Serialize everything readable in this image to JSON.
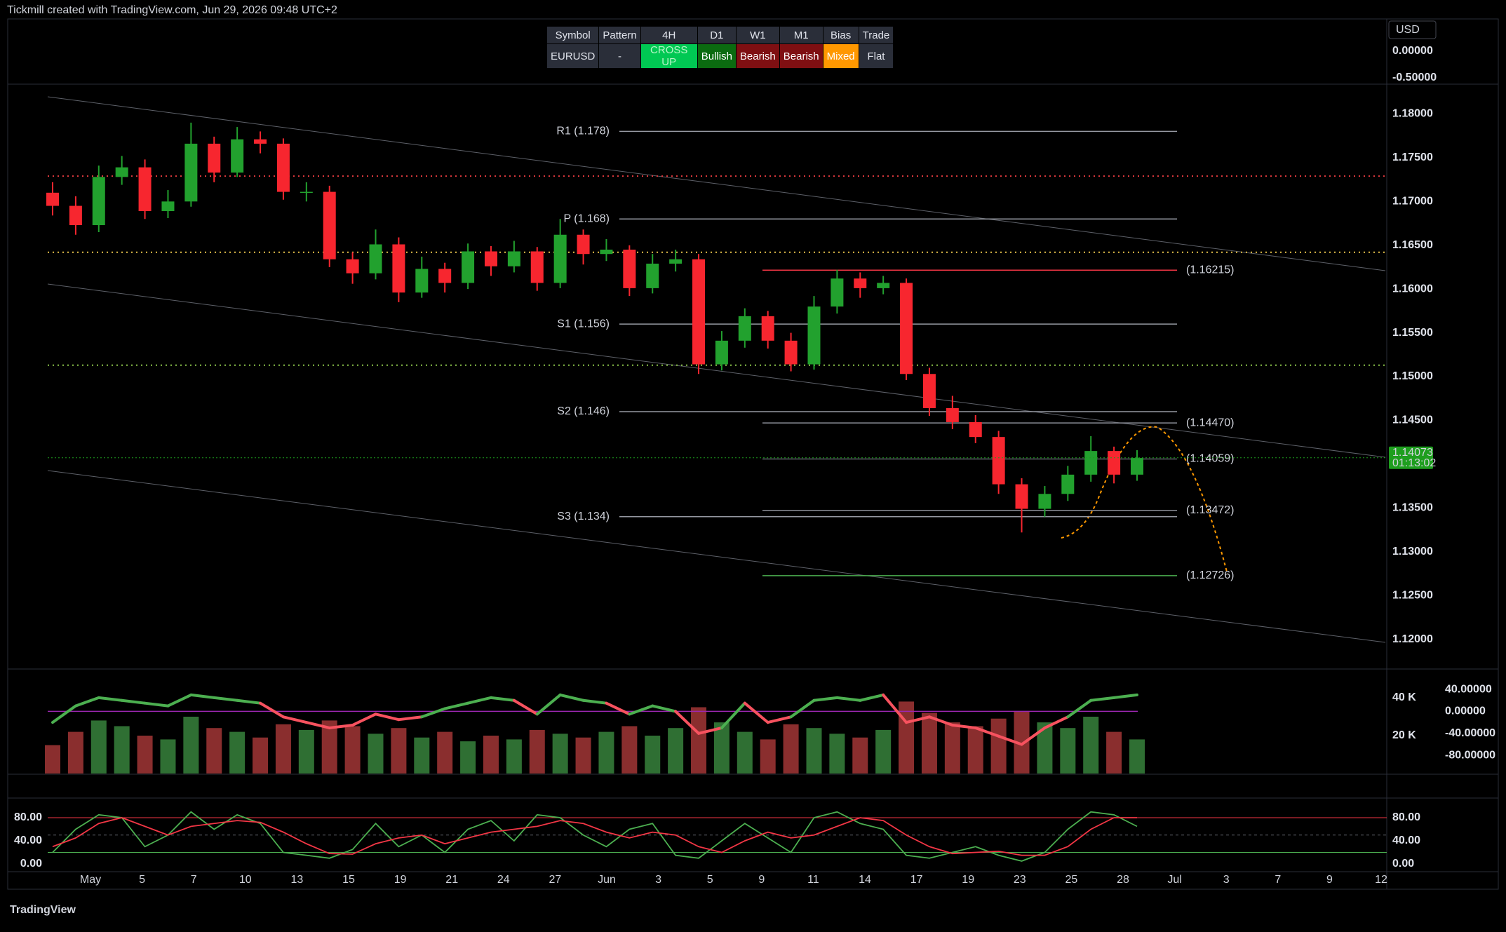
{
  "header": {
    "title": "Tickmill created with TradingView.com, Jun 29, 2026 09:48 UTC+2",
    "currency": "USD"
  },
  "table": {
    "header": [
      "Symbol",
      "Pattern",
      "4H",
      "D1",
      "W1",
      "M1",
      "Bias",
      "Trade"
    ],
    "row": [
      "EURUSD",
      "-",
      "CROSS UP",
      "Bullish",
      "Bearish",
      "Bearish",
      "Mixed",
      "Flat"
    ]
  },
  "footer": {
    "brand": "TradingView"
  },
  "chart_data": [
    {
      "type": "candlestick",
      "up_color": "#22a12e",
      "down_color": "#f7262f",
      "open": [
        1.171,
        1.1695,
        1.1673,
        1.1728,
        1.1739,
        1.1689,
        1.17,
        1.1766,
        1.1733,
        1.1771,
        1.1766,
        1.1711,
        1.1711,
        1.1634,
        1.1618,
        1.1651,
        1.1596,
        1.1623,
        1.1607,
        1.1643,
        1.1626,
        1.1643,
        1.1607,
        1.1662,
        1.164,
        1.1645,
        1.1601,
        1.1629,
        1.1634,
        1.1514,
        1.1541,
        1.1569,
        1.1541,
        1.1514,
        1.158,
        1.1612,
        1.1601,
        1.1607,
        1.1503,
        1.1464,
        1.1448,
        1.1431,
        1.1377,
        1.1349,
        1.1366,
        1.1388,
        1.1415,
        1.1388
      ],
      "high": [
        1.1722,
        1.1706,
        1.1741,
        1.1752,
        1.1748,
        1.1713,
        1.179,
        1.1774,
        1.1785,
        1.178,
        1.1772,
        1.1722,
        1.1718,
        1.1642,
        1.1668,
        1.1659,
        1.1637,
        1.163,
        1.1652,
        1.1649,
        1.1655,
        1.1648,
        1.168,
        1.1668,
        1.1657,
        1.165,
        1.164,
        1.1645,
        1.164,
        1.1552,
        1.1578,
        1.1575,
        1.155,
        1.1592,
        1.1622,
        1.1619,
        1.1615,
        1.1612,
        1.151,
        1.1478,
        1.1456,
        1.1438,
        1.1384,
        1.1375,
        1.1398,
        1.1432,
        1.142,
        1.1416
      ],
      "low": [
        1.1684,
        1.1662,
        1.1665,
        1.1719,
        1.168,
        1.1681,
        1.1694,
        1.1722,
        1.1728,
        1.1755,
        1.1702,
        1.17,
        1.1625,
        1.1606,
        1.1611,
        1.1585,
        1.159,
        1.1596,
        1.16,
        1.1615,
        1.1619,
        1.1598,
        1.1601,
        1.1628,
        1.1632,
        1.1592,
        1.1595,
        1.162,
        1.1503,
        1.1507,
        1.1533,
        1.1532,
        1.1506,
        1.1508,
        1.1572,
        1.159,
        1.1594,
        1.1496,
        1.1455,
        1.144,
        1.1424,
        1.1366,
        1.1322,
        1.134,
        1.1358,
        1.138,
        1.1378,
        1.1381
      ],
      "close": [
        1.1695,
        1.1673,
        1.1728,
        1.1739,
        1.1689,
        1.17,
        1.1766,
        1.1733,
        1.1771,
        1.1766,
        1.1711,
        1.1711,
        1.1634,
        1.1618,
        1.1651,
        1.1596,
        1.1623,
        1.1607,
        1.1643,
        1.1626,
        1.1643,
        1.1607,
        1.1662,
        1.164,
        1.1645,
        1.1601,
        1.1629,
        1.1634,
        1.1514,
        1.1541,
        1.1569,
        1.1541,
        1.1514,
        1.158,
        1.1612,
        1.1601,
        1.1607,
        1.1503,
        1.1464,
        1.1448,
        1.1431,
        1.1377,
        1.1349,
        1.1366,
        1.1388,
        1.1415,
        1.1388,
        1.1407
      ],
      "ylim": [
        1.1166,
        1.1834
      ],
      "yticks": [
        {
          "value": 1.18,
          "label": "1.18000"
        },
        {
          "value": 1.175,
          "label": "1.17500"
        },
        {
          "value": 1.17,
          "label": "1.17000"
        },
        {
          "value": 1.165,
          "label": "1.16500"
        },
        {
          "value": 1.16,
          "label": "1.16000"
        },
        {
          "value": 1.155,
          "label": "1.15500"
        },
        {
          "value": 1.15,
          "label": "1.15000"
        },
        {
          "value": 1.145,
          "label": "1.14500"
        },
        {
          "value": 1.14,
          "label": "1.14000"
        },
        {
          "value": 1.135,
          "label": "1.13500"
        },
        {
          "value": 1.13,
          "label": "1.13000"
        },
        {
          "value": 1.125,
          "label": "1.12500"
        },
        {
          "value": 1.12,
          "label": "1.12000"
        }
      ],
      "top_ylim": [
        -0.62,
        0.6
      ],
      "top_ticks": [
        {
          "value": 0,
          "label": "0.00000"
        },
        {
          "value": -0.5,
          "label": "-0.50000"
        }
      ],
      "last_price": 1.14073,
      "countdown": "01:13:02",
      "last_color": "#1e9e1e",
      "pivots": [
        {
          "label": "R1 (1.178)",
          "value": 1.178
        },
        {
          "label": "P (1.168)",
          "value": 1.168
        },
        {
          "label": "S1 (1.156)",
          "value": 1.156
        },
        {
          "label": "S2 (1.146)",
          "value": 1.146
        },
        {
          "label": "S3 (1.134)",
          "value": 1.134
        }
      ],
      "levels": [
        {
          "label": "(1.16215)",
          "value": 1.16215,
          "color": "#f23645"
        },
        {
          "label": "(1.14470)",
          "value": 1.1447,
          "color": "#8a8d96"
        },
        {
          "label": "(1.14059)",
          "value": 1.14059,
          "color": "#5d6068"
        },
        {
          "label": "(1.13472)",
          "value": 1.13472,
          "color": "#8a8d96"
        },
        {
          "label": "(1.12726)",
          "value": 1.12726,
          "color": "#4caf50"
        }
      ],
      "dotted_levels": [
        {
          "value": 1.1729,
          "color": "#e0393e"
        },
        {
          "value": 1.1642,
          "color": "#e5c14a"
        },
        {
          "value": 1.1513,
          "color": "#8bc34a"
        }
      ]
    },
    {
      "type": "bar",
      "up_color": "#2f6f33",
      "down_color": "#8a2e2e",
      "values": [
        15000,
        22000,
        28000,
        25000,
        20000,
        18000,
        30000,
        24000,
        22000,
        19000,
        26000,
        23000,
        28000,
        25000,
        21000,
        24000,
        19000,
        22000,
        17000,
        20000,
        18000,
        23000,
        21000,
        19000,
        22000,
        25000,
        20000,
        24000,
        35000,
        27000,
        22000,
        18000,
        26000,
        24000,
        21000,
        19000,
        23000,
        38000,
        32000,
        27000,
        25000,
        29000,
        33000,
        27000,
        24000,
        30000,
        22000,
        18000
      ],
      "ylim": [
        0,
        53700
      ],
      "yticks": [
        {
          "value": 40000,
          "label": "40 K"
        },
        {
          "value": 20000,
          "label": "20 K"
        }
      ],
      "line_values": [
        -20,
        10,
        25,
        20,
        15,
        10,
        30,
        25,
        20,
        15,
        -10,
        -20,
        -30,
        -25,
        -5,
        -15,
        -10,
        5,
        15,
        25,
        20,
        -5,
        30,
        20,
        15,
        -5,
        10,
        0,
        -40,
        -30,
        15,
        -20,
        -10,
        20,
        25,
        20,
        30,
        -20,
        -10,
        -25,
        -30,
        -45,
        -60,
        -30,
        -10,
        20,
        25,
        30
      ],
      "line_up_color": "#4caf50",
      "line_down_color": "#f7525f",
      "baseline": 0,
      "baseline_color": "#9c27b0",
      "y2lim": [
        -113,
        72
      ],
      "y2ticks": [
        {
          "value": 40,
          "label": "40.00000"
        },
        {
          "value": 0,
          "label": "0.00000"
        },
        {
          "value": -40,
          "label": "-40.00000"
        },
        {
          "value": -80,
          "label": "-80.00000"
        }
      ]
    },
    {
      "type": "line",
      "series": [
        {
          "color": "#4caf50",
          "values": [
            20,
            60,
            85,
            80,
            30,
            50,
            90,
            60,
            85,
            70,
            20,
            15,
            10,
            25,
            70,
            30,
            50,
            20,
            60,
            75,
            40,
            85,
            80,
            50,
            30,
            60,
            70,
            15,
            10,
            40,
            70,
            45,
            20,
            80,
            90,
            70,
            60,
            15,
            10,
            20,
            30,
            15,
            5,
            20,
            60,
            90,
            85,
            65
          ]
        },
        {
          "color": "#f23645",
          "values": [
            30,
            45,
            70,
            80,
            65,
            50,
            65,
            70,
            75,
            72,
            55,
            35,
            18,
            17,
            35,
            45,
            50,
            35,
            45,
            55,
            60,
            65,
            75,
            70,
            55,
            45,
            55,
            50,
            30,
            20,
            40,
            55,
            45,
            50,
            65,
            80,
            75,
            50,
            30,
            18,
            20,
            22,
            15,
            15,
            30,
            60,
            80,
            80
          ]
        }
      ],
      "ylim": [
        -13.3,
        112.7
      ],
      "yticks": [
        {
          "value": 80,
          "label": "80.00"
        },
        {
          "value": 40,
          "label": "40.00"
        },
        {
          "value": 0,
          "label": "0.00"
        }
      ],
      "levels": [
        {
          "value": 80,
          "color": "#f23645",
          "dash": "none"
        },
        {
          "value": 50,
          "color": "#5d6068",
          "dash": "4 4"
        },
        {
          "value": 20,
          "color": "#4caf50",
          "dash": "none"
        }
      ],
      "x_labels": [
        "May",
        "5",
        "7",
        "10",
        "13",
        "15",
        "19",
        "21",
        "24",
        "27",
        "Jun",
        "3",
        "5",
        "9",
        "11",
        "14",
        "17",
        "19",
        "23",
        "25",
        "28",
        "Jul",
        "3",
        "7",
        "9",
        "12"
      ]
    }
  ]
}
